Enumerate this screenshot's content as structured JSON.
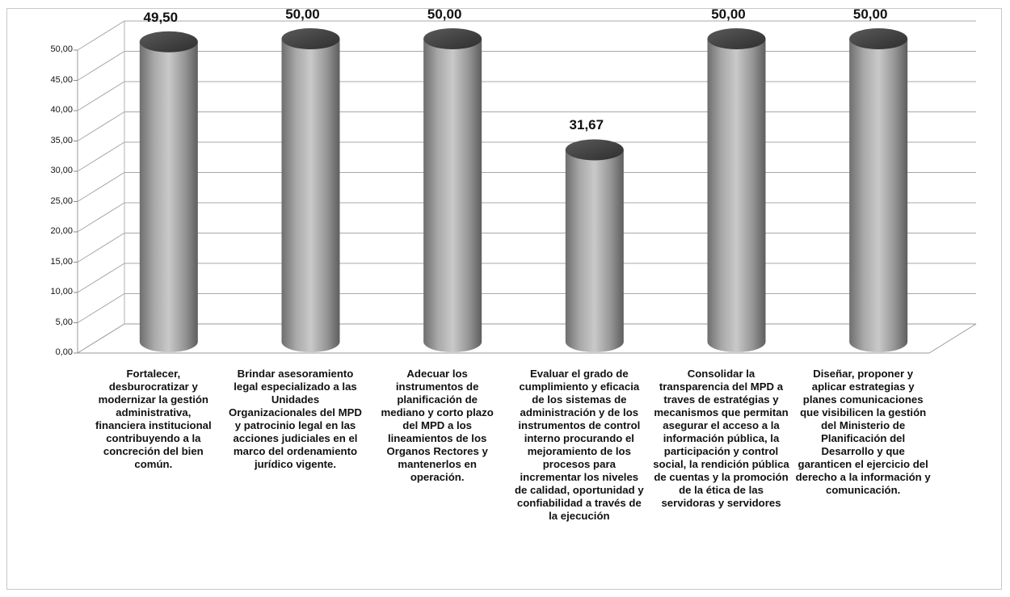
{
  "chart_data": {
    "type": "bar",
    "title": "",
    "xlabel": "",
    "ylabel": "",
    "ylim": [
      0,
      50
    ],
    "grid": true,
    "yticks": [
      "0,00",
      "5,00",
      "10,00",
      "15,00",
      "20,00",
      "25,00",
      "30,00",
      "35,00",
      "40,00",
      "45,00",
      "50,00"
    ],
    "categories": [
      "Fortalecer, desburocratizar y modernizar la gestión administrativa, financiera institucional contribuyendo a la concreción del bien común.",
      "Brindar asesoramiento legal especializado a las Unidades Organizacionales del MPD y patrocinio legal en las acciones judiciales en el marco del ordenamiento jurídico vigente.",
      "Adecuar los instrumentos de planificación de mediano y corto plazo del MPD a los lineamientos de los Organos Rectores y mantenerlos en operación.",
      "Evaluar el grado de cumplimiento y eficacia de los sistemas de administración y de los instrumentos de control interno procurando el mejoramiento de los procesos para incrementar los niveles de calidad, oportunidad y confiabilidad a través de la ejecución",
      "Consolidar la transparencia del MPD a traves de estratégias y mecanismos que permitan asegurar el acceso a la información pública, la participación y control social, la rendición pública de cuentas y la promoción de la ética de las servidoras y servidores",
      "Diseñar, proponer y aplicar estrategias y planes comunicaciones que visibilicen la gestión del Ministerio de Planificación del Desarrollo y que garanticen el ejercicio del derecho a la información y comunicación."
    ],
    "values": [
      49.5,
      50.0,
      50.0,
      31.67,
      50.0,
      50.0
    ],
    "data_labels": [
      "49,50",
      "50,00",
      "50,00",
      "31,67",
      "50,00",
      "50,00"
    ]
  }
}
